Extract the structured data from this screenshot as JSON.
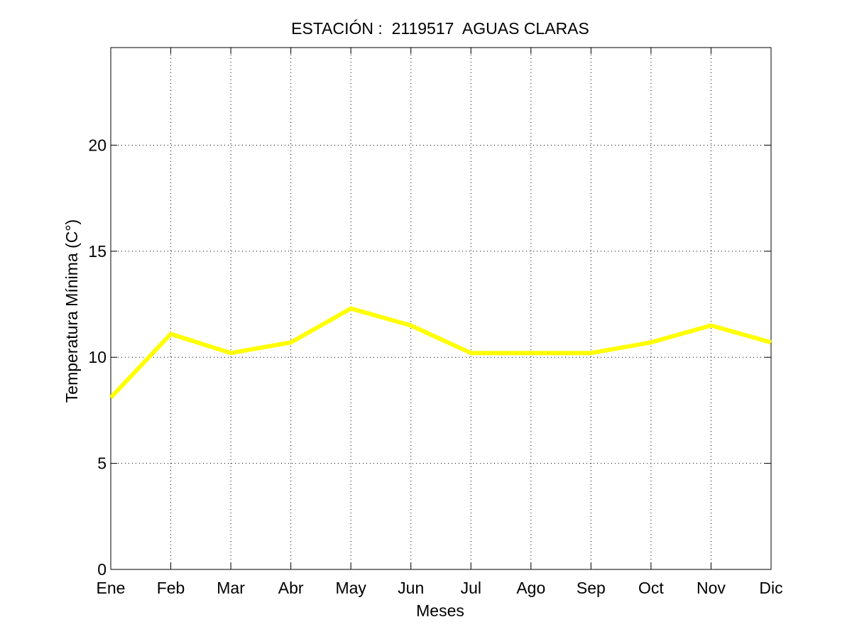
{
  "chart_data": {
    "type": "line",
    "title": "ESTACIÓN :  2119517  AGUAS CLARAS",
    "xlabel": "Meses",
    "ylabel": "Temperatura Mínima (C°)",
    "categories": [
      "Ene",
      "Feb",
      "Mar",
      "Abr",
      "May",
      "Jun",
      "Jul",
      "Ago",
      "Sep",
      "Oct",
      "Nov",
      "Dic"
    ],
    "series": [
      {
        "values": [
          8.1,
          11.1,
          10.2,
          10.7,
          12.3,
          11.5,
          10.2,
          10.2,
          10.2,
          10.7,
          11.5,
          10.7
        ],
        "color": "#ffff00"
      }
    ],
    "ylim": [
      0,
      24.6
    ],
    "yticks": [
      0,
      5,
      10,
      15,
      20
    ],
    "grid": true,
    "legend": "none"
  }
}
